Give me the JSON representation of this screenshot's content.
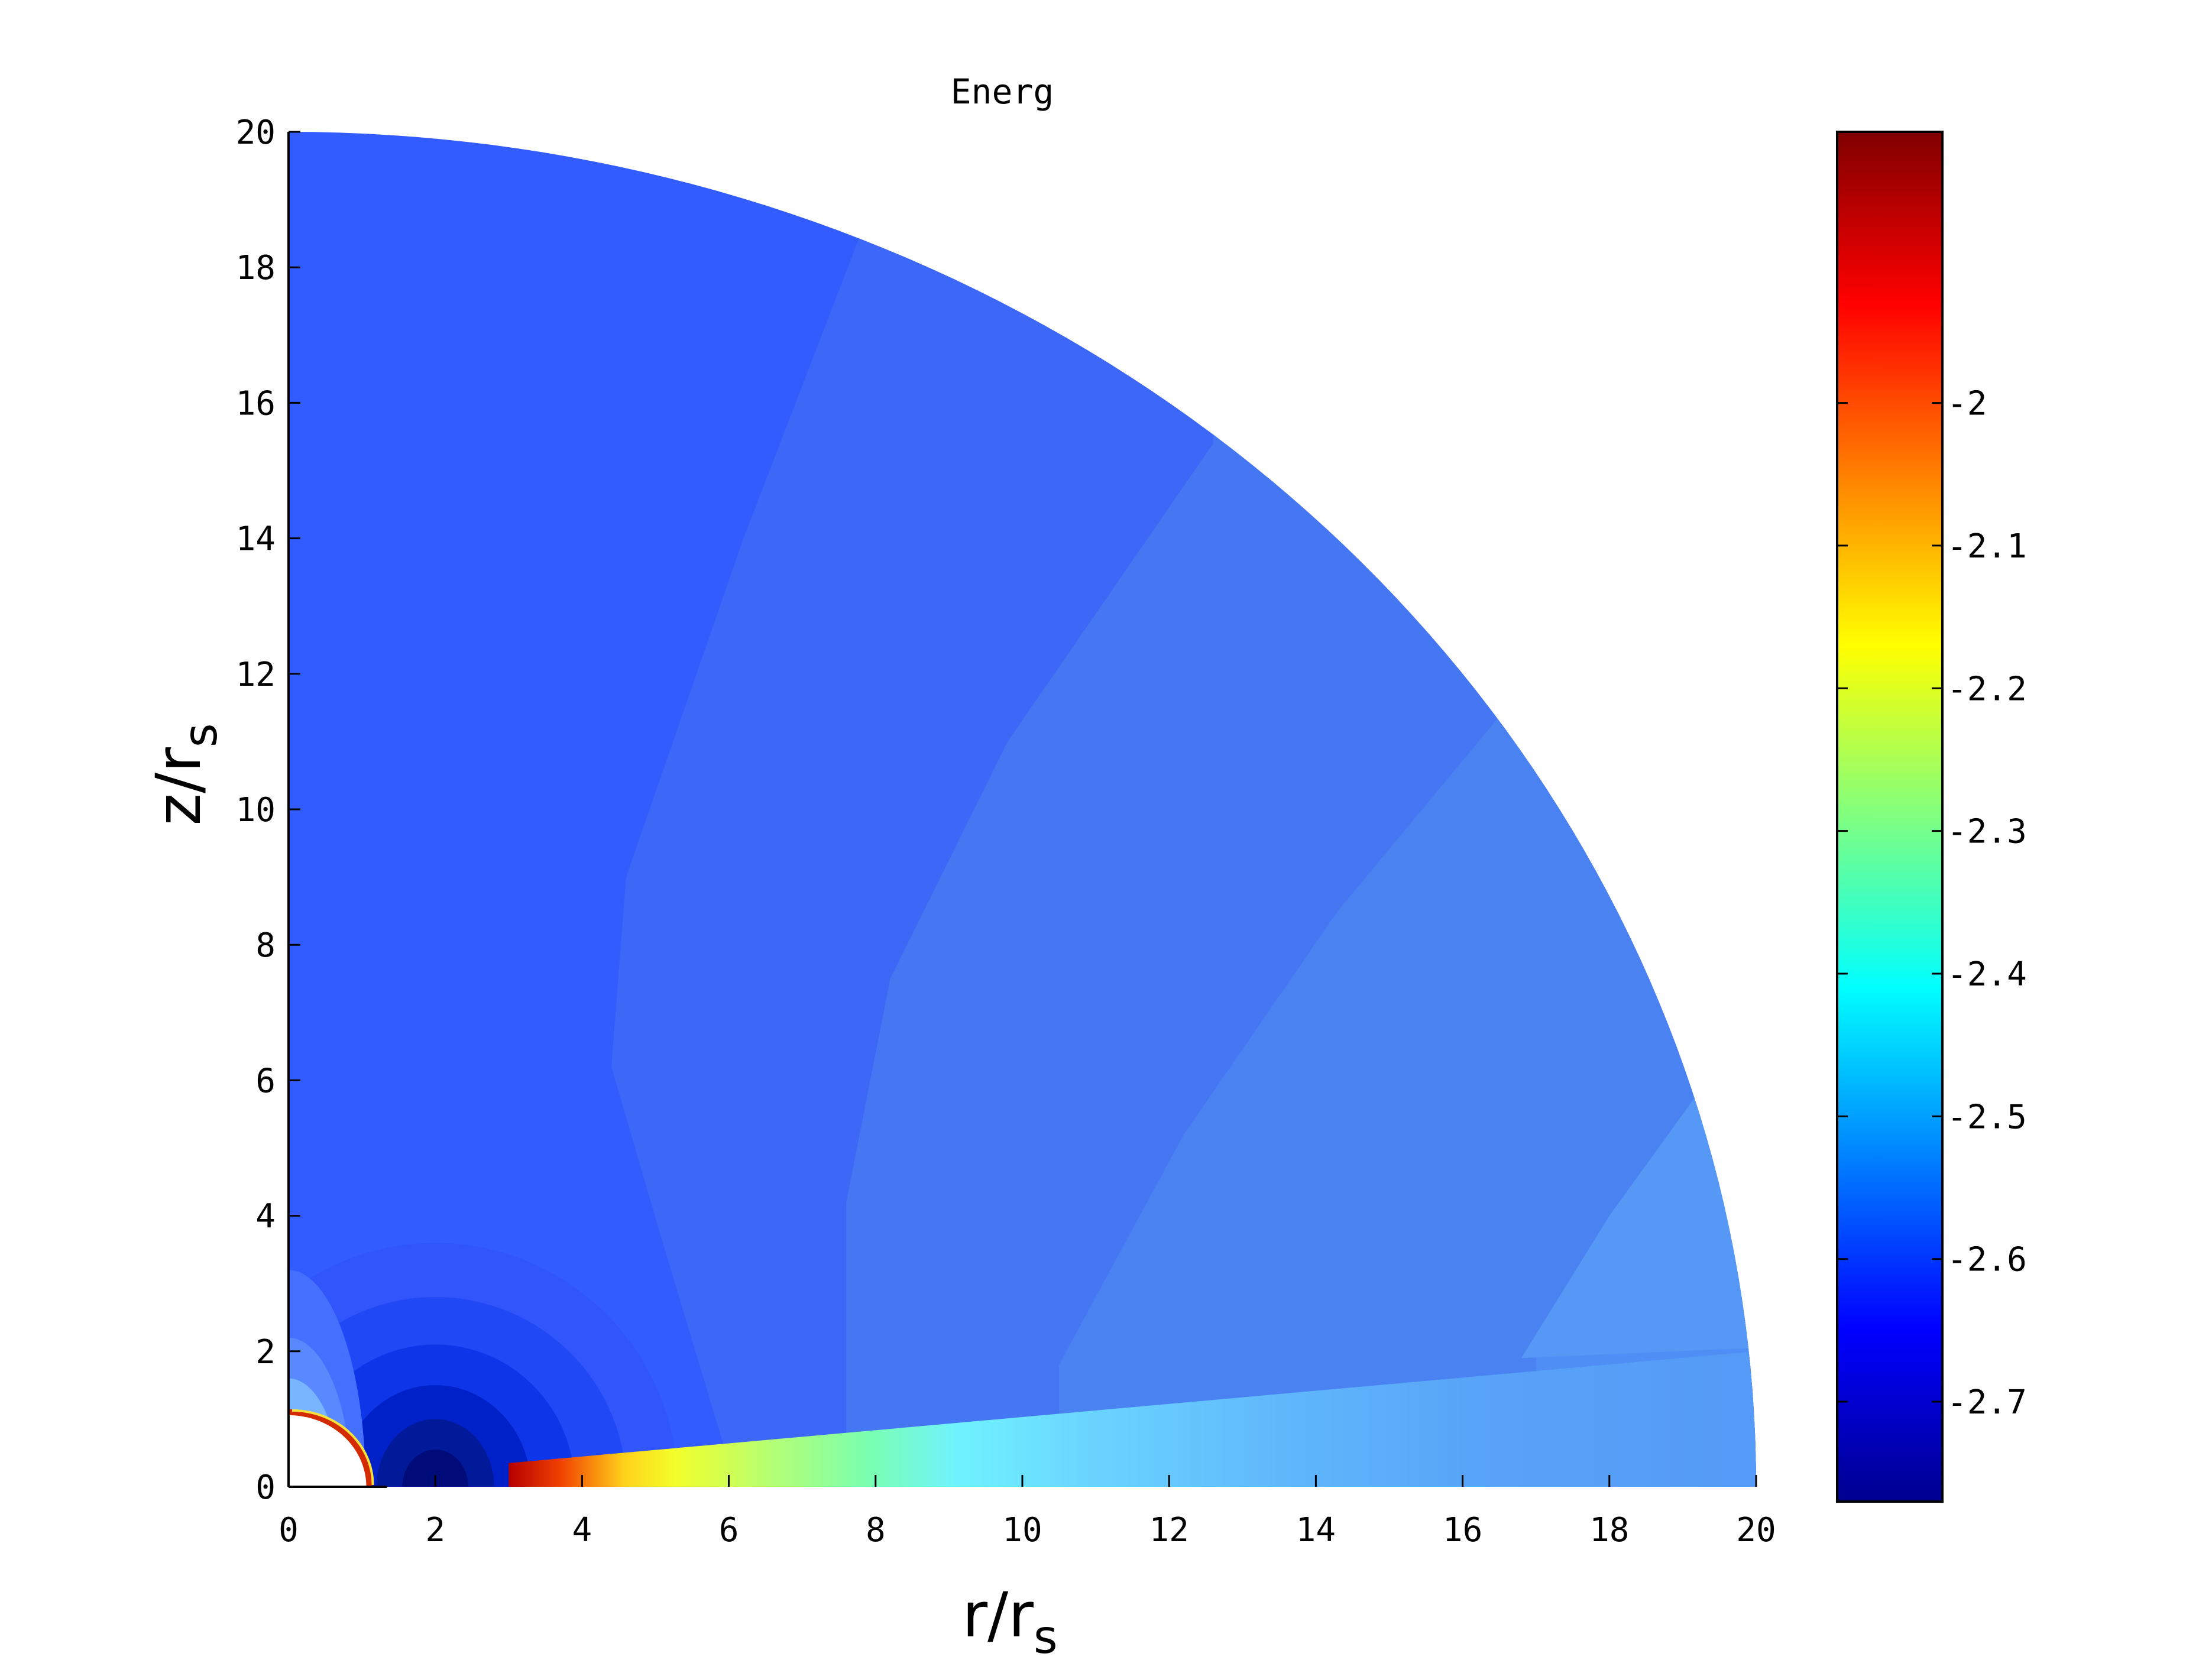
{
  "chart_data": {
    "type": "heatmap",
    "title": "Energ",
    "xlabel": "r/r",
    "xlabel_sub": "s",
    "ylabel": "z/r",
    "ylabel_sub": "s",
    "xlim": [
      0,
      20
    ],
    "ylim": [
      0,
      20
    ],
    "x_ticks": [
      "0",
      "2",
      "4",
      "6",
      "8",
      "10",
      "12",
      "14",
      "16",
      "18",
      "20"
    ],
    "y_ticks": [
      "0",
      "2",
      "4",
      "6",
      "8",
      "10",
      "12",
      "14",
      "16",
      "18",
      "20"
    ],
    "grid": false,
    "domain": "quarter disk, radius 20 r_s; inner hole radius 1.1 r_s",
    "colorbar": {
      "colormap": "jet",
      "range": [
        -2.77,
        -1.81
      ],
      "ticks": [
        "-2",
        "-2.1",
        "-2.2",
        "-2.3",
        "-2.4",
        "-2.5",
        "-2.6",
        "-2.7"
      ],
      "tick_values": [
        -2.0,
        -2.1,
        -2.2,
        -2.3,
        -2.4,
        -2.5,
        -2.6,
        -2.7
      ]
    },
    "regions": [
      {
        "name": "polar region",
        "value": -2.655,
        "color": "#335cff"
      },
      {
        "name": "band 2",
        "value": -2.64,
        "color": "#3d67f7"
      },
      {
        "name": "band 3",
        "value": -2.62,
        "color": "#4577f3"
      },
      {
        "name": "band 4",
        "value": -2.605,
        "color": "#4a82f2"
      },
      {
        "name": "band 5",
        "value": -2.59,
        "color": "#4f8ef5"
      },
      {
        "name": "outer wedge",
        "value": -2.57,
        "color": "#5598f5"
      },
      {
        "name": "inner minimum near r=2",
        "value": -2.77,
        "color": "#001a99"
      },
      {
        "name": "equatorial disk start r=3",
        "value": -1.83,
        "color": "#b80000"
      },
      {
        "name": "equatorial disk r~8",
        "value": -2.45,
        "color": "#6ef2ff"
      }
    ]
  }
}
